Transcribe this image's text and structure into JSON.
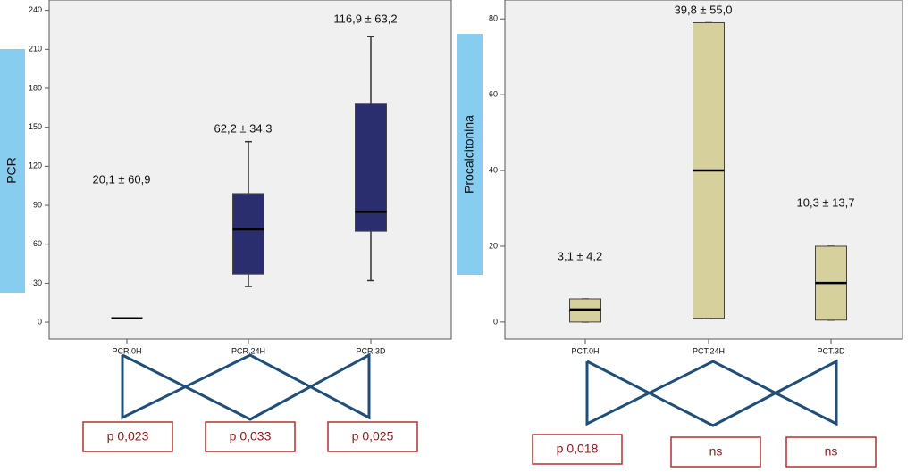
{
  "chart_data": [
    {
      "type": "box",
      "y_label": "PCR",
      "categories": [
        "PCR.0H",
        "PCR.24H",
        "PCR.3D"
      ],
      "annotations": [
        "20,1 ± 60,9",
        "62,2 ± 34,3",
        "116,9 ± 63,2"
      ],
      "low": [
        3,
        27.5,
        32
      ],
      "q1": [
        3,
        37,
        70
      ],
      "median": [
        3,
        71.5,
        85
      ],
      "q3": [
        3,
        99,
        168.5
      ],
      "high": [
        3,
        139,
        220
      ],
      "color": "#2b2e6e",
      "ylim": [
        -13,
        248
      ],
      "yticks": [
        0,
        30,
        60,
        90,
        120,
        150,
        180,
        210,
        240
      ],
      "comparisons": [
        "p 0,023",
        "p 0,033",
        "p 0,025"
      ]
    },
    {
      "type": "box",
      "y_label": "Procalcitonina",
      "categories": [
        "PCT.0H",
        "PCT.24H",
        "PCT.3D"
      ],
      "annotations": [
        "3,1 ± 4,2",
        "39,8 ± 55,0",
        "10,3 ± 13,7"
      ],
      "low": [
        0,
        1,
        0.5
      ],
      "q1": [
        0,
        1,
        0.5
      ],
      "median": [
        3.3,
        40,
        10.3
      ],
      "q3": [
        6.1,
        79,
        20
      ],
      "high": [
        6.1,
        79,
        20
      ],
      "color": "#d5d09c",
      "ylim": [
        -4.5,
        85
      ],
      "yticks": [
        0,
        20,
        40,
        60,
        80
      ],
      "comparisons": [
        "p 0,018",
        "ns",
        "ns"
      ]
    }
  ]
}
